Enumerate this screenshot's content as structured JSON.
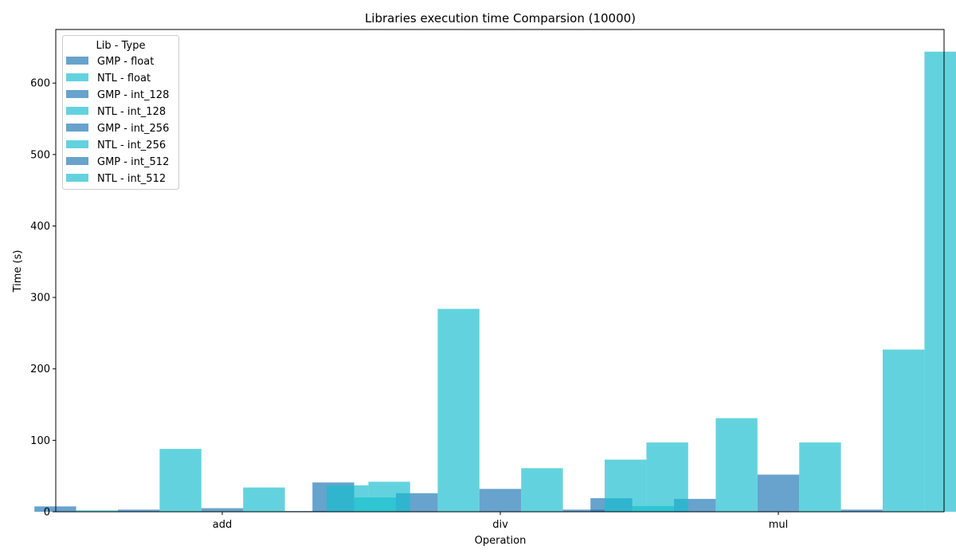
{
  "chart_data": {
    "type": "bar",
    "title": "Libraries execution time Comparsion (10000)",
    "xlabel": "Operation",
    "ylabel": "Time (s)",
    "categories": [
      "add",
      "div",
      "mul"
    ],
    "ylim": [
      0,
      675
    ],
    "yticks": [
      0,
      100,
      200,
      300,
      400,
      500,
      600
    ],
    "grid": false,
    "legend": {
      "title": "Lib - Type",
      "position": "top-left"
    },
    "series": [
      {
        "name": "GMP - float",
        "color": "#1f77b4",
        "values": [
          7.5,
          41,
          19
        ]
      },
      {
        "name": "NTL - float",
        "color": "#17becf",
        "values": [
          2,
          20,
          8
        ]
      },
      {
        "name": "GMP - int_128",
        "color": "#1f77b4",
        "values": [
          3,
          26,
          18
        ]
      },
      {
        "name": "NTL - int_128",
        "color": "#17becf",
        "values": [
          88,
          284,
          131
        ]
      },
      {
        "name": "GMP - int_256",
        "color": "#1f77b4",
        "values": [
          5,
          32,
          52
        ]
      },
      {
        "name": "NTL - int_256",
        "color": "#17becf",
        "values": [
          34,
          61,
          97
        ]
      },
      {
        "name": "GMP - int_512",
        "color": "#1f77b4",
        "values": [
          1,
          3,
          3
        ]
      },
      {
        "name": "NTL - int_512",
        "color": "#17becf",
        "values": [
          37,
          73,
          227
        ]
      },
      {
        "name": "",
        "color": "#17becf",
        "values": [
          42,
          97,
          644
        ]
      }
    ]
  }
}
